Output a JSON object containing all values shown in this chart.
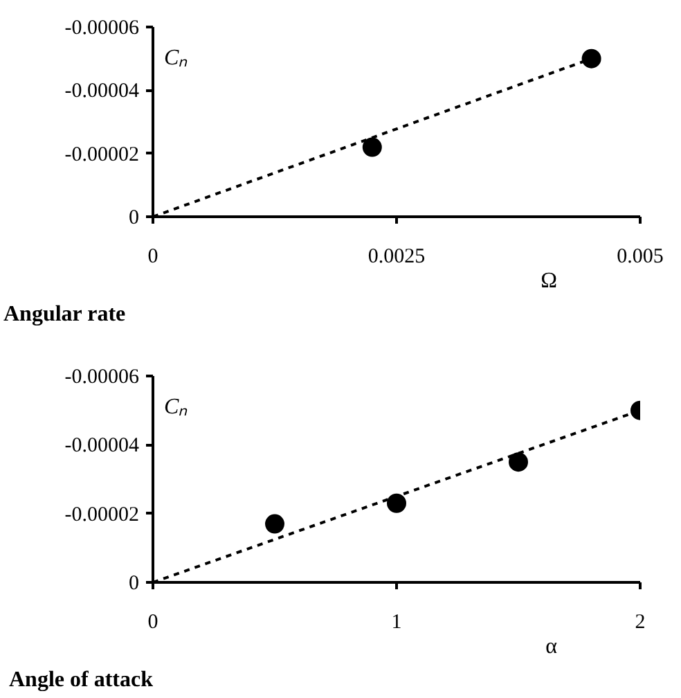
{
  "chart_data": [
    {
      "type": "scatter",
      "title": "Angular rate",
      "xlabel": "Ω",
      "ylabel": "Cₙ",
      "xlim": [
        0,
        0.005
      ],
      "ylim": [
        0,
        -6e-05
      ],
      "xticks": [
        0,
        0.0025,
        0.005
      ],
      "yticks": [
        0,
        {
          "value": -2e-05,
          "label": "-0.00002"
        },
        {
          "value": -4e-05,
          "label": "-0.00004"
        },
        {
          "value": -6e-05,
          "label": "-0.00006"
        }
      ],
      "grid": false,
      "marker": "circle",
      "series": [
        {
          "color": "#000000",
          "x": [
            0.00225,
            0.0045
          ],
          "values": [
            -2.2e-05,
            -5e-05
          ]
        },
        {
          "type": "line",
          "color": "#000000",
          "line_style": "dashed",
          "marker": "none",
          "x": [
            0,
            0.0045
          ],
          "values": [
            0,
            -5e-05
          ]
        }
      ]
    },
    {
      "type": "scatter",
      "title": "Angle of attack",
      "xlabel": "α",
      "ylabel": "Cₙ",
      "xlim": [
        0,
        2
      ],
      "ylim": [
        0,
        -6e-05
      ],
      "xticks": [
        0,
        1,
        2
      ],
      "yticks": [
        0,
        {
          "value": -2e-05,
          "label": "-0.00002"
        },
        {
          "value": -4e-05,
          "label": "-0.00004"
        },
        {
          "value": -6e-05,
          "label": "-0.00006"
        }
      ],
      "grid": false,
      "marker": "circle",
      "series": [
        {
          "color": "#000000",
          "x": [
            0.5,
            1,
            1.5,
            2
          ],
          "values": [
            -1.7e-05,
            -2.3e-05,
            -3.5e-05,
            -5e-05
          ]
        },
        {
          "type": "line",
          "color": "#000000",
          "line_style": "dashed",
          "marker": "none",
          "x": [
            0,
            2
          ],
          "values": [
            0,
            -5e-05
          ]
        }
      ]
    }
  ]
}
